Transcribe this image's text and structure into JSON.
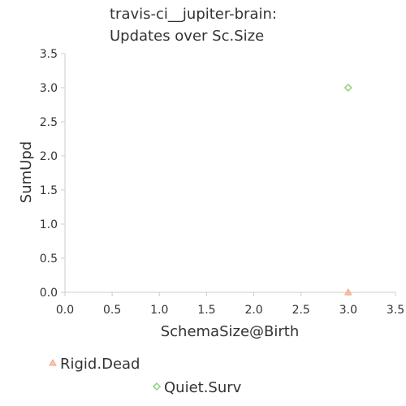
{
  "chart_data": {
    "type": "scatter",
    "title": "travis-ci__jupiter-brain:",
    "subtitle": "Updates over Sc.Size",
    "xlabel": "SchemaSize@Birth",
    "ylabel": "SumUpd",
    "xlim": [
      0.0,
      3.5
    ],
    "ylim": [
      0.0,
      3.5
    ],
    "xticks": [
      "0.0",
      "0.5",
      "1.0",
      "1.5",
      "2.0",
      "2.5",
      "3.0",
      "3.5"
    ],
    "yticks": [
      "0.0",
      "0.5",
      "1.0",
      "1.5",
      "2.0",
      "2.5",
      "3.0",
      "3.5"
    ],
    "grid": false,
    "legend_position": "bottom",
    "series": [
      {
        "name": "Rigid.Dead",
        "marker": "triangle",
        "color": "#f5a582",
        "points": [
          {
            "x": 3.0,
            "y": 0.0
          }
        ]
      },
      {
        "name": "Quiet.Surv",
        "marker": "diamond",
        "color": "#8fd07a",
        "points": [
          {
            "x": 3.0,
            "y": 3.0
          }
        ]
      }
    ]
  }
}
